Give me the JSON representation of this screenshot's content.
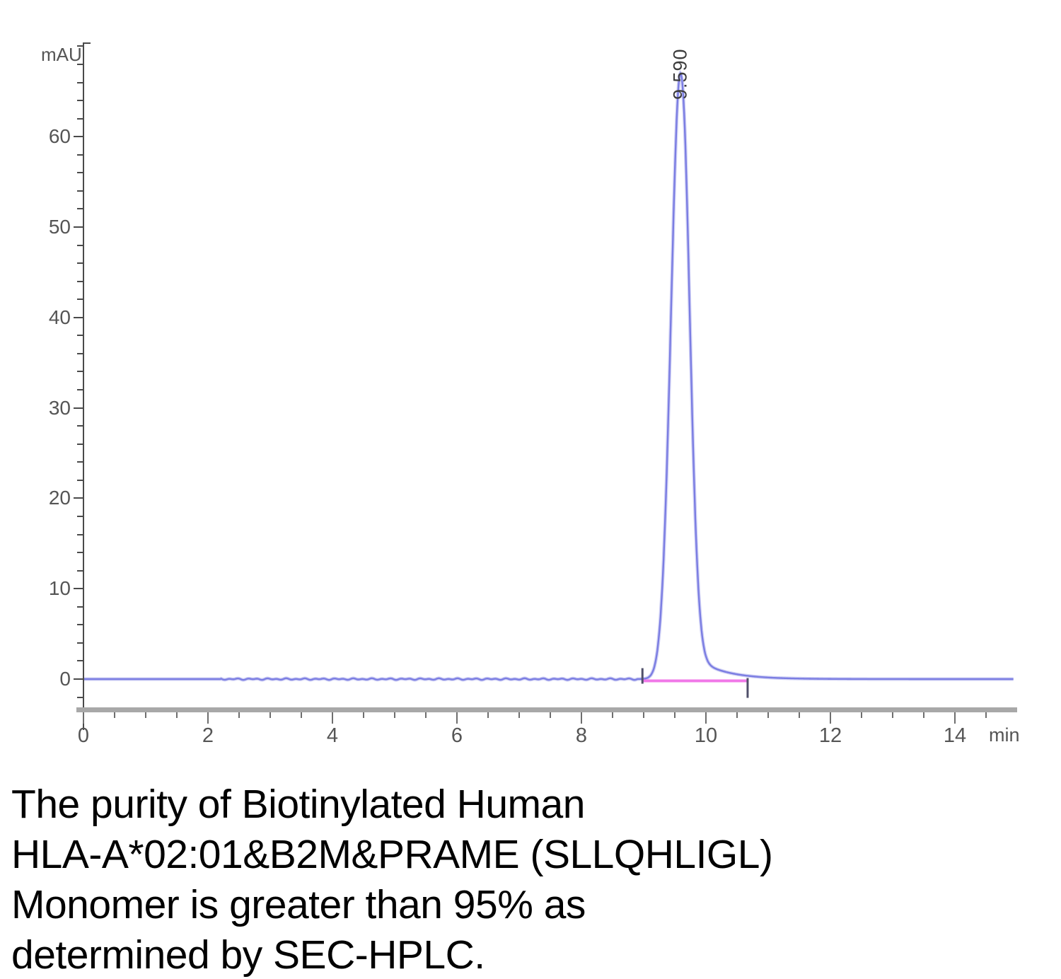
{
  "chart": {
    "y_axis_unit": "mAU",
    "x_axis_unit": "min",
    "y_tick_labels": [
      "0",
      "10",
      "20",
      "30",
      "40",
      "50",
      "60"
    ],
    "x_tick_labels": [
      "0",
      "2",
      "4",
      "6",
      "8",
      "10",
      "12",
      "14"
    ],
    "peak_label": "9.590"
  },
  "chart_data": {
    "type": "line",
    "title": "",
    "xlabel": "min",
    "ylabel": "mAU",
    "xlim": [
      0,
      15
    ],
    "ylim": [
      -3.5,
      70
    ],
    "grid": false,
    "legend": "none",
    "y_major_ticks": [
      0,
      10,
      20,
      30,
      40,
      50,
      60
    ],
    "y_minor_step_mau": 2,
    "x_major_ticks": [
      0,
      2,
      4,
      6,
      8,
      10,
      12,
      14
    ],
    "x_minor_step_min": 0.5,
    "series": [
      {
        "name": "uv-absorbance-trace",
        "color": "#7b7de2",
        "baseline_mau": 0,
        "peak": {
          "retention_time_min": 9.59,
          "height_mau": 67,
          "label": "9.590",
          "sigma_left_min": 0.15,
          "sigma_right_min": 0.14,
          "tail_amp_mau": 4,
          "tail_tau_min": 0.45
        }
      },
      {
        "name": "integration-baseline",
        "color": "#f078e8",
        "start_min": 8.98,
        "end_min": 10.67,
        "level_mau": -0.2
      }
    ],
    "annotations": [
      "9.590"
    ]
  },
  "colors": {
    "axis": "#4a4a4a",
    "axis_bar": "#a8a8a8",
    "tick_text": "#555555",
    "trace": "#7b7de2",
    "integration": "#f078e8",
    "integration_marker": "#4f4f6a",
    "caption_text": "#000000"
  },
  "caption": {
    "lines": [
      "The purity of Biotinylated Human",
      "HLA-A*02:01&B2M&PRAME (SLLQHLIGL)",
      "Monomer is greater than 95% as",
      "determined by SEC-HPLC."
    ]
  }
}
